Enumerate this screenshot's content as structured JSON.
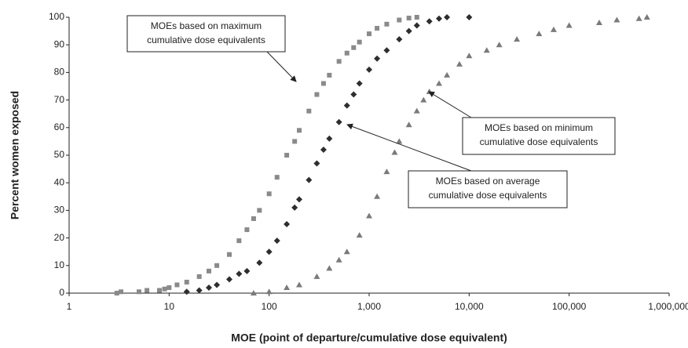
{
  "chart_data": {
    "type": "scatter",
    "x_label": "MOE (point of departure/cumulative dose equivalent)",
    "y_label": "Percent women exposed",
    "xscale": "log",
    "xlim": [
      1,
      1000000
    ],
    "xticks": [
      1,
      10,
      100,
      {
        "value": 1000,
        "label": "1,000"
      },
      {
        "value": 10000,
        "label": "10,000"
      },
      {
        "value": 100000,
        "label": "100,000"
      },
      {
        "value": 1000000,
        "label": "1,000,000"
      }
    ],
    "ylim": [
      0,
      100
    ],
    "yticks": [
      0,
      10,
      20,
      30,
      40,
      50,
      60,
      70,
      80,
      90,
      100
    ],
    "grid": false,
    "series": [
      {
        "name": "MOEs based on maximum cumulative dose equivalents",
        "marker": "square",
        "color": "#8a8a8a",
        "x": [
          3,
          3.3,
          5,
          6,
          8,
          9,
          10,
          12,
          15,
          20,
          25,
          30,
          40,
          50,
          60,
          70,
          80,
          100,
          120,
          150,
          180,
          200,
          250,
          300,
          350,
          400,
          500,
          600,
          700,
          800,
          1000,
          1200,
          1500,
          2000,
          2500,
          3000
        ],
        "y": [
          0,
          0.5,
          0.5,
          1,
          1,
          1.5,
          2,
          3,
          4,
          6,
          8,
          10,
          14,
          19,
          23,
          27,
          30,
          36,
          42,
          50,
          55,
          59,
          66,
          72,
          76,
          79,
          84,
          87,
          89,
          91,
          94,
          96,
          97.5,
          99,
          99.7,
          100
        ]
      },
      {
        "name": "MOEs based on average cumulative dose equivalents",
        "marker": "diamond",
        "color": "#2e2e2e",
        "x": [
          15,
          20,
          25,
          30,
          40,
          50,
          60,
          80,
          100,
          120,
          150,
          180,
          200,
          250,
          300,
          350,
          400,
          500,
          600,
          700,
          800,
          1000,
          1200,
          1500,
          2000,
          2500,
          3000,
          4000,
          5000,
          6000,
          10000
        ],
        "y": [
          0.5,
          1,
          2,
          3,
          5,
          7,
          8,
          11,
          15,
          19,
          25,
          31,
          34,
          41,
          47,
          52,
          56,
          62,
          68,
          72,
          76,
          81,
          85,
          88,
          92,
          95,
          97,
          98.5,
          99.5,
          100,
          100
        ]
      },
      {
        "name": "MOEs based on minimum cumulative dose equivalents",
        "marker": "triangle",
        "color": "#7a7a7a",
        "x": [
          70,
          100,
          150,
          200,
          300,
          400,
          500,
          600,
          800,
          1000,
          1200,
          1500,
          1800,
          2000,
          2500,
          3000,
          3500,
          4000,
          5000,
          6000,
          8000,
          10000,
          15000,
          20000,
          30000,
          50000,
          70000,
          100000,
          200000,
          300000,
          500000,
          600000
        ],
        "y": [
          0,
          0.5,
          2,
          3,
          6,
          9,
          12,
          15,
          21,
          28,
          35,
          44,
          51,
          55,
          61,
          66,
          70,
          73,
          76,
          79,
          83,
          86,
          88,
          90,
          92,
          94,
          95.5,
          97,
          98,
          99,
          99.5,
          100
        ]
      }
    ],
    "annotations": [
      {
        "lines": [
          "MOEs based on maximum",
          "cumulative dose equivalents"
        ]
      },
      {
        "lines": [
          "MOEs based on minimum",
          "cumulative dose equivalents"
        ]
      },
      {
        "lines": [
          "MOEs based on average",
          "cumulative dose equivalents"
        ]
      }
    ]
  }
}
